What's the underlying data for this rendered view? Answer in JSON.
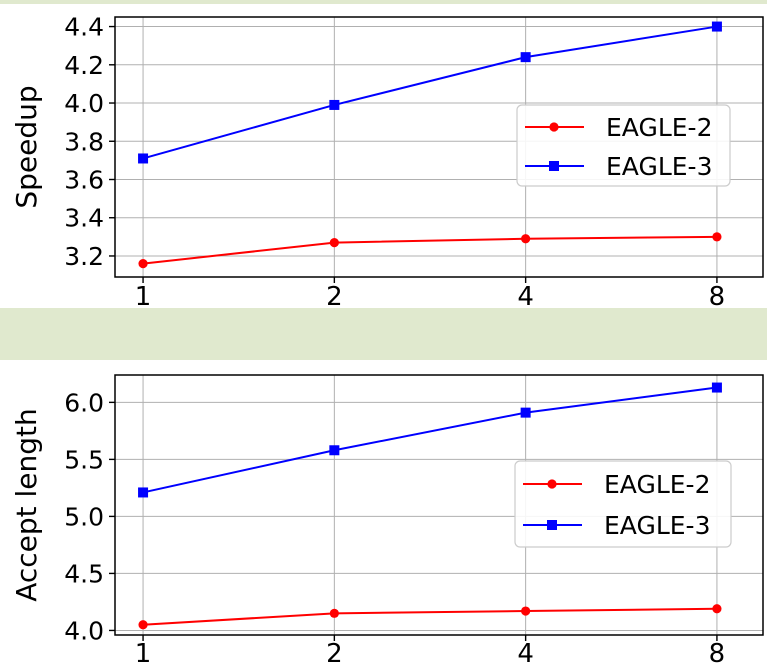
{
  "figure": {
    "background": "#ffffff",
    "band_color": "#e0e9ce",
    "grid_color": "#b0b0b0",
    "axis_color": "#000000",
    "text_color": "#000000",
    "legend_border_color": "#cccccc",
    "legend_background": "rgba(255,255,255,0.88)"
  },
  "chart_data": [
    {
      "type": "line",
      "title": "",
      "xlabel": "",
      "ylabel": "Speedup",
      "x": [
        1,
        2,
        4,
        8
      ],
      "x_scale": "log2",
      "xtick_labels": [
        "1",
        "2",
        "4",
        "8"
      ],
      "ytick_values": [
        3.2,
        3.4,
        3.6,
        3.8,
        4.0,
        4.2,
        4.4
      ],
      "ytick_labels": [
        "3.2",
        "3.4",
        "3.6",
        "3.8",
        "4.0",
        "4.2",
        "4.4"
      ],
      "ylim": [
        3.09,
        4.45
      ],
      "grid": true,
      "legend_position": "center right",
      "series": [
        {
          "name": "EAGLE-2",
          "color": "#ff0000",
          "marker": "circle",
          "values": [
            3.16,
            3.27,
            3.29,
            3.3
          ]
        },
        {
          "name": "EAGLE-3",
          "color": "#0000ff",
          "marker": "square",
          "values": [
            3.71,
            3.99,
            4.24,
            4.4
          ]
        }
      ]
    },
    {
      "type": "line",
      "title": "",
      "xlabel": "",
      "ylabel": "Accept length",
      "x": [
        1,
        2,
        4,
        8
      ],
      "x_scale": "log2",
      "xtick_labels": [
        "1",
        "2",
        "4",
        "8"
      ],
      "ytick_values": [
        4.0,
        4.5,
        5.0,
        5.5,
        6.0
      ],
      "ytick_labels": [
        "4.0",
        "4.5",
        "5.0",
        "5.5",
        "6.0"
      ],
      "ylim": [
        3.96,
        6.24
      ],
      "grid": true,
      "legend_position": "center right",
      "series": [
        {
          "name": "EAGLE-2",
          "color": "#ff0000",
          "marker": "circle",
          "values": [
            4.05,
            4.15,
            4.17,
            4.19
          ]
        },
        {
          "name": "EAGLE-3",
          "color": "#0000ff",
          "marker": "square",
          "values": [
            5.21,
            5.58,
            5.91,
            6.13
          ]
        }
      ]
    }
  ]
}
